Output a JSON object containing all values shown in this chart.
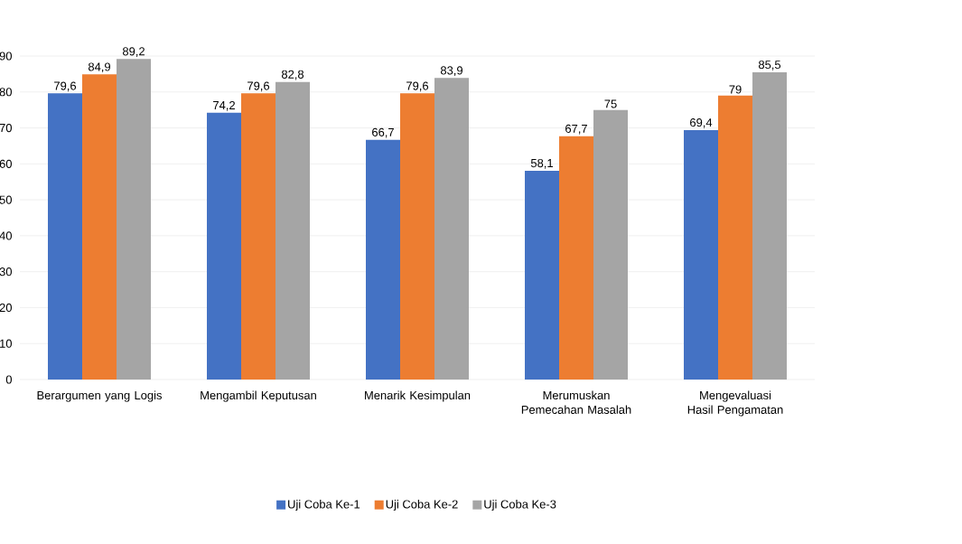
{
  "chart_data": {
    "type": "bar",
    "categories": [
      "Berargumen yang Logis",
      "Mengambil Keputusan",
      "Menarik Kesimpulan",
      "Merumuskan Pemecahan Masalah",
      "Mengevaluasi Hasil Pengamatan"
    ],
    "series": [
      {
        "name": "Uji Coba Ke-1",
        "color": "#4472c4",
        "values": [
          79.6,
          74.2,
          66.7,
          58.1,
          69.4
        ],
        "value_labels": [
          "79,6",
          "74,2",
          "66,7",
          "58,1",
          "69,4"
        ]
      },
      {
        "name": "Uji Coba Ke-2",
        "color": "#ed7d31",
        "values": [
          84.9,
          79.6,
          79.6,
          67.7,
          79
        ],
        "value_labels": [
          "84,9",
          "79,6",
          "79,6",
          "67,7",
          "79"
        ]
      },
      {
        "name": "Uji Coba Ke-3",
        "color": "#a5a5a5",
        "values": [
          89.2,
          82.8,
          83.9,
          75,
          85.5
        ],
        "value_labels": [
          "89,2",
          "82,8",
          "83,9",
          "75",
          "85,5"
        ]
      }
    ],
    "ylim": [
      0,
      90
    ],
    "yticks": [
      0,
      10,
      20,
      30,
      40,
      50,
      60,
      70,
      80,
      90
    ],
    "grid": "y",
    "legend": "bottom"
  }
}
